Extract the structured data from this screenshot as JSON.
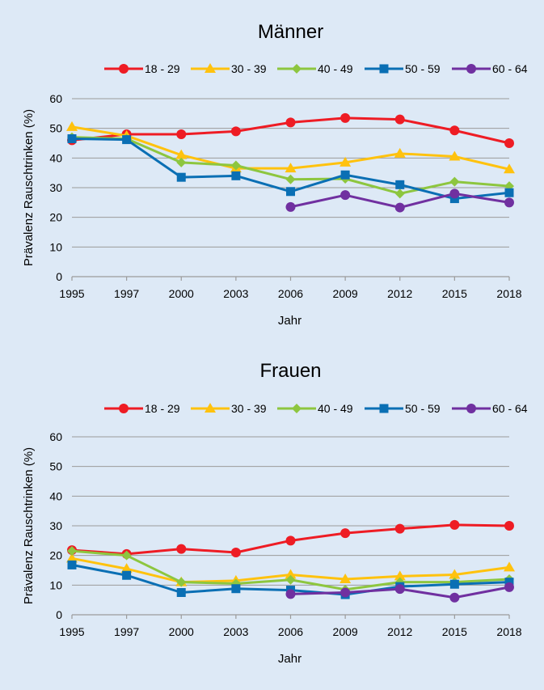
{
  "colors": {
    "s18": "#ee1c24",
    "s30": "#ffc20e",
    "s40": "#8dc63f",
    "s50": "#0a6fb4",
    "s60": "#7030a0",
    "grid": "#9b9b9b",
    "background": "#dde9f6"
  },
  "chart_data": [
    {
      "type": "line",
      "title": "Männer",
      "xlabel": "Jahr",
      "ylabel": "Prävalenz Rauschtrinken (%)",
      "ylim": [
        0,
        60
      ],
      "yticks": [
        "0",
        "10",
        "20",
        "30",
        "40",
        "50",
        "60"
      ],
      "categories": [
        "1995",
        "1997",
        "2000",
        "2003",
        "2006",
        "2009",
        "2012",
        "2015",
        "2018"
      ],
      "legend_position": "top",
      "series": [
        {
          "name": "18 - 29",
          "color": "s18",
          "marker": "circle",
          "values": [
            46.0,
            48.0,
            48.0,
            49.0,
            52.0,
            53.5,
            53.0,
            49.3,
            45.0
          ]
        },
        {
          "name": "30 - 39",
          "color": "s30",
          "marker": "triangle",
          "values": [
            50.5,
            47.5,
            41.0,
            36.5,
            36.5,
            38.5,
            41.5,
            40.5,
            36.2
          ]
        },
        {
          "name": "40 - 49",
          "color": "s40",
          "marker": "diamond",
          "values": [
            47.0,
            46.5,
            38.5,
            37.5,
            32.8,
            33.0,
            28.0,
            32.0,
            30.5
          ]
        },
        {
          "name": "50 - 59",
          "color": "s50",
          "marker": "square",
          "values": [
            46.5,
            46.2,
            33.5,
            34.0,
            28.7,
            34.3,
            31.0,
            26.3,
            28.3
          ]
        },
        {
          "name": "60 - 64",
          "color": "s60",
          "marker": "circle",
          "values": [
            null,
            null,
            null,
            null,
            23.5,
            27.5,
            23.3,
            28.0,
            25.0
          ]
        }
      ]
    },
    {
      "type": "line",
      "title": "Frauen",
      "xlabel": "Jahr",
      "ylabel": "Prävalenz Rauschtrinken (%)",
      "ylim": [
        0,
        60
      ],
      "yticks": [
        "0",
        "10",
        "20",
        "30",
        "40",
        "50",
        "60"
      ],
      "categories": [
        "1995",
        "1997",
        "2000",
        "2003",
        "2006",
        "2009",
        "2012",
        "2015",
        "2018"
      ],
      "legend_position": "top",
      "series": [
        {
          "name": "18 - 29",
          "color": "s18",
          "marker": "circle",
          "values": [
            21.8,
            20.5,
            22.2,
            21.0,
            25.0,
            27.5,
            29.0,
            30.3,
            30.0
          ]
        },
        {
          "name": "30 - 39",
          "color": "s30",
          "marker": "triangle",
          "values": [
            19.0,
            15.5,
            11.0,
            11.5,
            13.5,
            12.0,
            13.0,
            13.5,
            16.0
          ]
        },
        {
          "name": "40 - 49",
          "color": "s40",
          "marker": "diamond",
          "values": [
            21.5,
            20.0,
            11.0,
            10.5,
            11.8,
            8.5,
            11.0,
            11.0,
            12.0
          ]
        },
        {
          "name": "50 - 59",
          "color": "s50",
          "marker": "square",
          "values": [
            16.8,
            13.3,
            7.5,
            8.8,
            8.3,
            6.8,
            9.5,
            10.3,
            11.0
          ]
        },
        {
          "name": "60 - 64",
          "color": "s60",
          "marker": "circle",
          "values": [
            null,
            null,
            null,
            null,
            7.0,
            7.5,
            8.7,
            5.8,
            9.3
          ]
        }
      ]
    }
  ]
}
